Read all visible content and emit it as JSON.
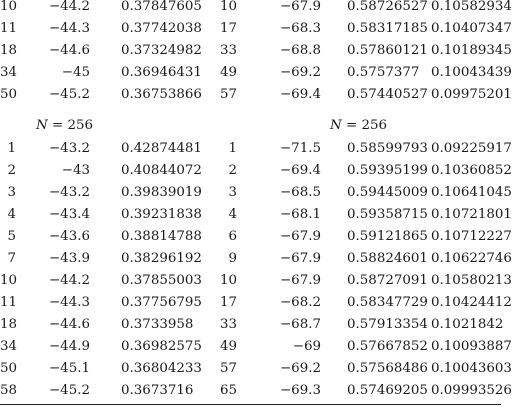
{
  "top_block": [
    {
      "k1": "10",
      "d1": "−44.2",
      "r1": "0.37847605",
      "k2": "10",
      "d2": "−67.9",
      "r2": "0.58726527",
      "s2": "0.10582934"
    },
    {
      "k1": "11",
      "d1": "−44.3",
      "r1": "0.37742038",
      "k2": "17",
      "d2": "−68.3",
      "r2": "0.58317185",
      "s2": "0.10407347"
    },
    {
      "k1": "18",
      "d1": "−44.6",
      "r1": "0.37324982",
      "k2": "33",
      "d2": "−68.8",
      "r2": "0.57860121",
      "s2": "0.10189345"
    },
    {
      "k1": "34",
      "d1": "−45",
      "r1": "0.36946431",
      "k2": "49",
      "d2": "−69.2",
      "r2": "0.5757377",
      "s2": "0.10043439"
    },
    {
      "k1": "50",
      "d1": "−45.2",
      "r1": "0.36753866",
      "k2": "57",
      "d2": "−69.4",
      "r2": "0.57440527",
      "s2": "0.09975201"
    }
  ],
  "header": {
    "left_var": "N",
    "left_rest": " = 256",
    "right_var": "N",
    "right_rest": " = 256"
  },
  "bottom_block": [
    {
      "k1": "1",
      "d1": "−43.2",
      "r1": "0.42874481",
      "k2": "1",
      "d2": "−71.5",
      "r2": "0.58599793",
      "s2": "0.09225917"
    },
    {
      "k1": "2",
      "d1": "−43",
      "r1": "0.40844072",
      "k2": "2",
      "d2": "−69.4",
      "r2": "0.59395199",
      "s2": "0.10360852"
    },
    {
      "k1": "3",
      "d1": "−43.2",
      "r1": "0.39839019",
      "k2": "3",
      "d2": "−68.5",
      "r2": "0.59445009",
      "s2": "0.10641045"
    },
    {
      "k1": "4",
      "d1": "−43.4",
      "r1": "0.39231838",
      "k2": "4",
      "d2": "−68.1",
      "r2": "0.59358715",
      "s2": "0.10721801"
    },
    {
      "k1": "5",
      "d1": "−43.6",
      "r1": "0.38814788",
      "k2": "6",
      "d2": "−67.9",
      "r2": "0.59121865",
      "s2": "0.10712227"
    },
    {
      "k1": "7",
      "d1": "−43.9",
      "r1": "0.38296192",
      "k2": "9",
      "d2": "−67.9",
      "r2": "0.58824601",
      "s2": "0.10622746"
    },
    {
      "k1": "10",
      "d1": "−44.2",
      "r1": "0.37855003",
      "k2": "10",
      "d2": "−67.9",
      "r2": "0.58727091",
      "s2": "0.10580213"
    },
    {
      "k1": "11",
      "d1": "−44.3",
      "r1": "0.37756795",
      "k2": "17",
      "d2": "−68.2",
      "r2": "0.58347729",
      "s2": "0.10424412"
    },
    {
      "k1": "18",
      "d1": "−44.6",
      "r1": "0.3733958",
      "k2": "33",
      "d2": "−68.7",
      "r2": "0.57913354",
      "s2": "0.1021842"
    },
    {
      "k1": "34",
      "d1": "−44.9",
      "r1": "0.36982575",
      "k2": "49",
      "d2": "−69",
      "r2": "0.57667852",
      "s2": "0.10093887"
    },
    {
      "k1": "50",
      "d1": "−45.1",
      "r1": "0.36804233",
      "k2": "57",
      "d2": "−69.2",
      "r2": "0.57568486",
      "s2": "0.10043603"
    },
    {
      "k1": "58",
      "d1": "−45.2",
      "r1": "0.3673716",
      "k2": "65",
      "d2": "−69.3",
      "r2": "0.57469205",
      "s2": "0.09993526"
    }
  ]
}
